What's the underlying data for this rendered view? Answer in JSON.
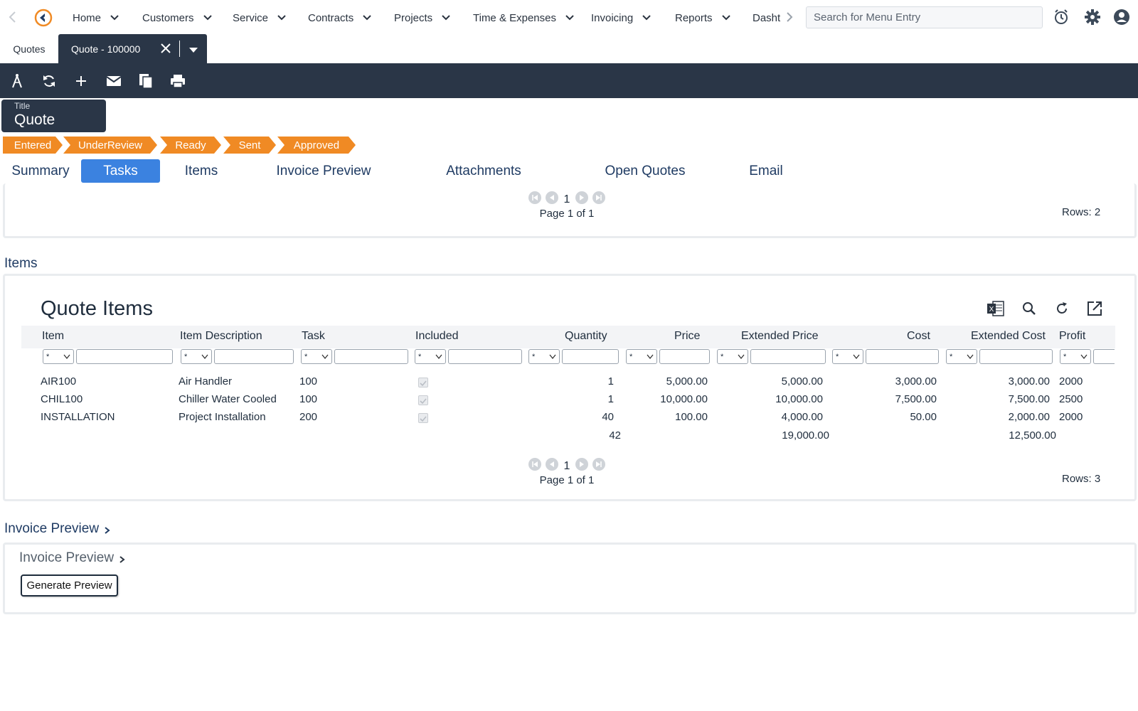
{
  "nav": {
    "menu": [
      {
        "label": "Home"
      },
      {
        "label": "Customers"
      },
      {
        "label": "Service"
      },
      {
        "label": "Contracts"
      },
      {
        "label": "Projects"
      },
      {
        "label": "Time & Expenses"
      },
      {
        "label": "Invoicing"
      },
      {
        "label": "Reports"
      },
      {
        "label": "Dasht"
      }
    ],
    "search_placeholder": "Search for Menu Entry"
  },
  "tabs": {
    "quotes_label": "Quotes",
    "active_label": "Quote - 100000"
  },
  "title": {
    "label": "Title",
    "value": "Quote"
  },
  "statuses": [
    "Entered",
    "UnderReview",
    "Ready",
    "Sent",
    "Approved"
  ],
  "section_tabs": [
    "Summary",
    "Tasks",
    "Items",
    "Invoice Preview",
    "Attachments",
    "Open Quotes",
    "Email"
  ],
  "tasks_panel": {
    "page_number": "1",
    "page_text": "Page 1 of 1",
    "rows_text": "Rows: 2"
  },
  "items_section": {
    "heading": "Items",
    "grid_title": "Quote Items",
    "columns": [
      "Item",
      "Item Description",
      "Task",
      "Included",
      "Quantity",
      "Price",
      "Extended Price",
      "Cost",
      "Extended Cost",
      "Profit"
    ],
    "filter_default": "*",
    "rows": [
      {
        "item": "AIR100",
        "description": "Air Handler",
        "task": "100",
        "quantity": "1",
        "price": "5,000.00",
        "ext_price": "5,000.00",
        "cost": "3,000.00",
        "ext_cost": "3,000.00",
        "profit": "2000"
      },
      {
        "item": "CHIL100",
        "description": "Chiller Water Cooled",
        "task": "100",
        "quantity": "1",
        "price": "10,000.00",
        "ext_price": "10,000.00",
        "cost": "7,500.00",
        "ext_cost": "7,500.00",
        "profit": "2500"
      },
      {
        "item": "INSTALLATION",
        "description": "Project Installation",
        "task": "200",
        "quantity": "40",
        "price": "100.00",
        "ext_price": "4,000.00",
        "cost": "50.00",
        "ext_cost": "2,000.00",
        "profit": "2000"
      }
    ],
    "totals": {
      "quantity": "42",
      "ext_price": "19,000.00",
      "ext_cost": "12,500.00"
    },
    "page_number": "1",
    "page_text": "Page 1 of 1",
    "rows_text": "Rows: 3"
  },
  "invoice_section": {
    "heading": "Invoice Preview",
    "sub_heading": "Invoice Preview",
    "button_label": "Generate Preview"
  },
  "colors": {
    "toolbar": "#2a3647",
    "status": "#f08a24",
    "active_tab": "#3b82e0",
    "heading": "#1f3b63"
  }
}
